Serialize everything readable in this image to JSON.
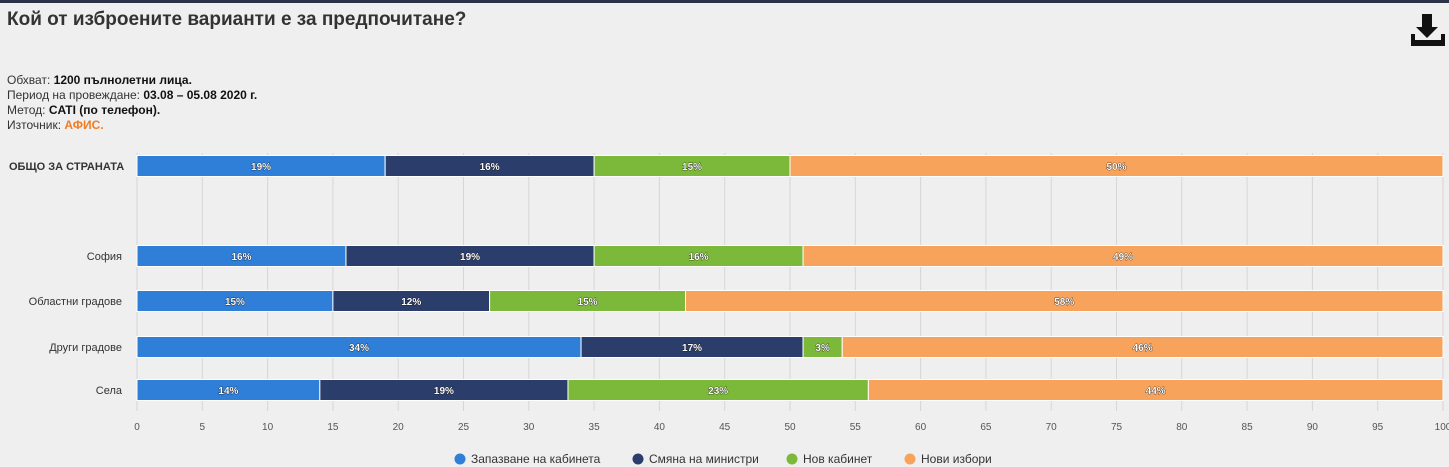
{
  "header": {
    "title": "Кой от изброените варианти е за предпочитане?",
    "download_icon": "download-icon"
  },
  "meta": {
    "scope_label": "Обхват:",
    "scope_value": "1200 пълнолетни лица.",
    "period_label": "Период на провеждане:",
    "period_value": "03.08 – 05.08 2020 г.",
    "method_label": "Метод:",
    "method_value": "CATI (по телефон).",
    "source_label": "Източник:",
    "source_value": "АФИС."
  },
  "chart_data": {
    "type": "bar",
    "orientation": "horizontal",
    "stacked": true,
    "categories": [
      "ОБЩО ЗА СТРАНАТА",
      "София",
      "Областни градове",
      "Други градове",
      "Села"
    ],
    "series": [
      {
        "name": "Запазване на кабинета",
        "color": "#2f7ed8",
        "values": [
          19,
          16,
          15,
          34,
          14
        ]
      },
      {
        "name": "Смяна на министри",
        "color": "#2b3d6b",
        "values": [
          16,
          19,
          12,
          17,
          19
        ]
      },
      {
        "name": "Нов кабинет",
        "color": "#7cb83a",
        "values": [
          15,
          16,
          15,
          3,
          23
        ]
      },
      {
        "name": "Нови избори",
        "color": "#f7a35c",
        "values": [
          50,
          49,
          58,
          46,
          44
        ]
      }
    ],
    "xlim": [
      0,
      100
    ],
    "ticks": [
      0,
      5,
      10,
      15,
      20,
      25,
      30,
      35,
      40,
      45,
      50,
      55,
      60,
      65,
      70,
      75,
      80,
      85,
      90,
      95,
      100
    ],
    "grid": true,
    "legend": "bottom"
  }
}
